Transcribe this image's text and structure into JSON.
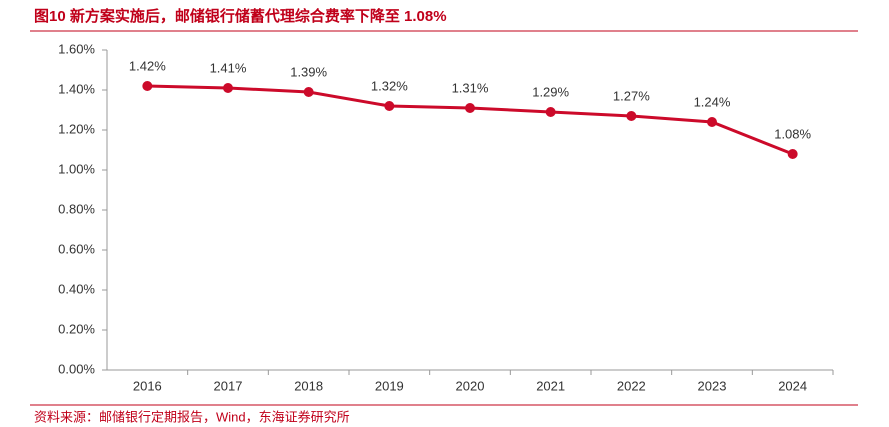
{
  "chart_data": {
    "type": "line",
    "title": "图10  新方案实施后，邮储银行储蓄代理综合费率下降至 1.08%",
    "source": "资料来源：邮储银行定期报告，Wind，东海证券研究所",
    "categories": [
      "2016",
      "2017",
      "2018",
      "2019",
      "2020",
      "2021",
      "2022",
      "2023",
      "2024"
    ],
    "series": [
      {
        "color": "#cc0a2a",
        "values": [
          1.42,
          1.41,
          1.39,
          1.32,
          1.31,
          1.29,
          1.27,
          1.24,
          1.08
        ],
        "value_labels": [
          "1.42%",
          "1.41%",
          "1.39%",
          "1.32%",
          "1.31%",
          "1.29%",
          "1.27%",
          "1.24%",
          "1.08%"
        ]
      }
    ],
    "ylim": [
      0,
      1.6
    ],
    "yticks": [
      {
        "value": 0,
        "label": "0.00%"
      },
      {
        "value": 0.2,
        "label": "0.20%"
      },
      {
        "value": 0.4,
        "label": "0.40%"
      },
      {
        "value": 0.6,
        "label": "0.60%"
      },
      {
        "value": 0.8,
        "label": "0.80%"
      },
      {
        "value": 1.0,
        "label": "1.00%"
      },
      {
        "value": 1.2,
        "label": "1.20%"
      },
      {
        "value": 1.4,
        "label": "1.40%"
      },
      {
        "value": 1.6,
        "label": "1.60%"
      }
    ],
    "grid": false
  }
}
